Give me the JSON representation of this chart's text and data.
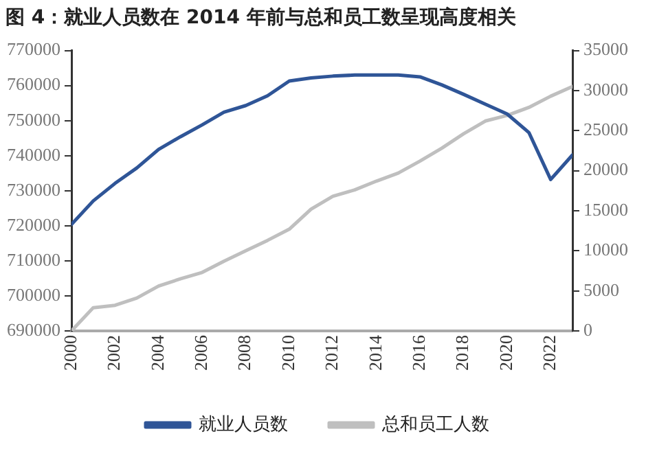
{
  "chart_data": {
    "type": "line",
    "title": "图 4：就业人员数在 2014 年前与总和员工数呈现高度相关",
    "x": [
      2000,
      2001,
      2002,
      2003,
      2004,
      2005,
      2006,
      2007,
      2008,
      2009,
      2010,
      2011,
      2012,
      2013,
      2014,
      2015,
      2016,
      2017,
      2018,
      2019,
      2020,
      2021,
      2022,
      2023
    ],
    "xlim": [
      2000,
      2023
    ],
    "xticks": [
      2000,
      2002,
      2004,
      2006,
      2008,
      2010,
      2012,
      2014,
      2016,
      2018,
      2020,
      2022
    ],
    "ylim": [
      690000,
      770000
    ],
    "yticks": [
      690000,
      700000,
      710000,
      720000,
      730000,
      740000,
      750000,
      760000,
      770000
    ],
    "y2lim": [
      0,
      35000
    ],
    "y2ticks": [
      0,
      5000,
      10000,
      15000,
      20000,
      25000,
      30000,
      35000
    ],
    "series": [
      {
        "name": "就业人员数",
        "color": "#2f5597",
        "values": [
          720400,
          727100,
          732100,
          736500,
          741800,
          745400,
          748800,
          752400,
          754300,
          757100,
          761300,
          762200,
          762700,
          763000,
          763000,
          763000,
          762500,
          760200,
          757500,
          754700,
          751900,
          746600,
          733200,
          740200
        ]
      },
      {
        "name": "总和员工人数",
        "color": "#bfbfbf",
        "axis": "y2",
        "values": [
          0,
          2900,
          3200,
          4100,
          5600,
          6500,
          7300,
          8700,
          10000,
          11300,
          12700,
          15200,
          16800,
          17600,
          18700,
          19700,
          21200,
          22800,
          24600,
          26200,
          26900,
          27900,
          29300,
          30500
        ]
      }
    ],
    "legend": "bottom",
    "grid": false,
    "marker": "none",
    "line_style": "solid"
  }
}
